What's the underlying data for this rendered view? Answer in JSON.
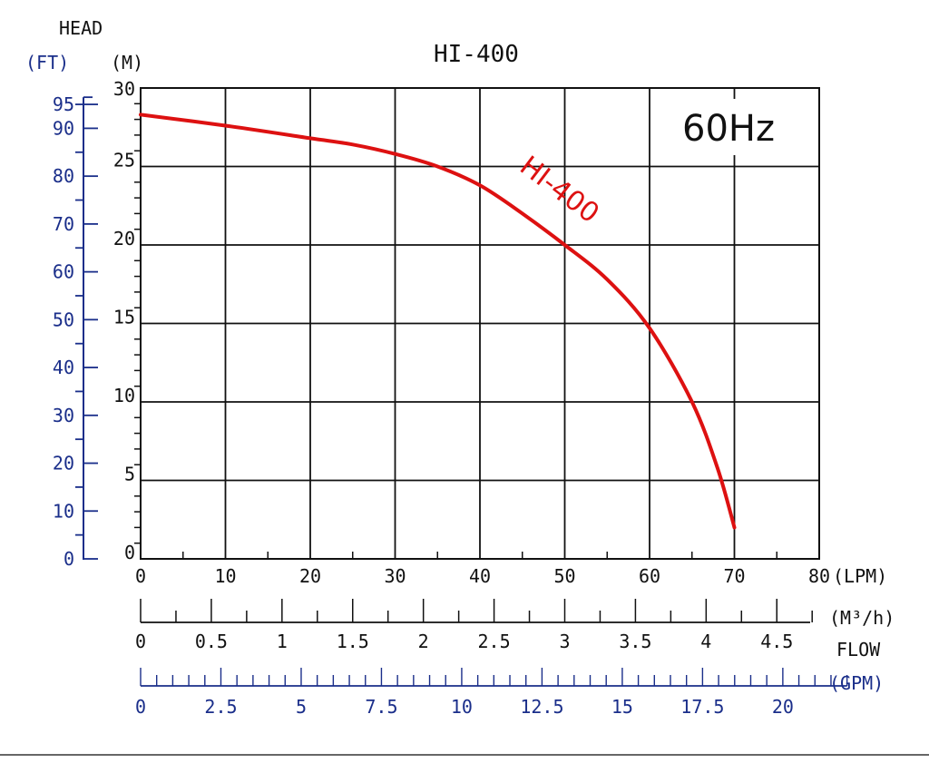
{
  "chart_data": {
    "type": "line",
    "title": "HI-400",
    "frequency_label": "60Hz",
    "curve_label": "HI-400",
    "y_axis_title": "HEAD",
    "y_left_unit": "(FT)",
    "y_left_ticks": [
      "0",
      "10",
      "20",
      "30",
      "40",
      "50",
      "60",
      "70",
      "80",
      "90",
      "95"
    ],
    "y_right_unit": "(M)",
    "y_right_ticks": [
      "0",
      "5",
      "10",
      "15",
      "20",
      "25",
      "30"
    ],
    "ylim": [
      0,
      30
    ],
    "xlim": [
      0,
      80
    ],
    "x_lpm_unit": "(LPM)",
    "x_lpm_ticks": [
      "0",
      "10",
      "20",
      "30",
      "40",
      "50",
      "60",
      "70",
      "80"
    ],
    "x_m3h_unit": "(M³/h)",
    "x_m3h_ticks": [
      "0",
      "0.5",
      "1",
      "1.5",
      "2",
      "2.5",
      "3",
      "3.5",
      "4",
      "4.5"
    ],
    "flow_label": "FLOW",
    "x_gpm_unit": "(GPM)",
    "x_gpm_ticks": [
      "0",
      "2.5",
      "5",
      "7.5",
      "10",
      "12.5",
      "15",
      "17.5",
      "20"
    ],
    "grid": true,
    "colors": {
      "curve": "#dd1111",
      "ft_axis": "#1a2e8a",
      "axis": "#111111"
    },
    "series": [
      {
        "name": "HI-400",
        "x": [
          0,
          10,
          20,
          25,
          30,
          35,
          40,
          45,
          50,
          55,
          60,
          65,
          68,
          70
        ],
        "y": [
          28.3,
          27.6,
          26.8,
          26.4,
          25.8,
          25.0,
          23.8,
          22.0,
          20.0,
          17.8,
          14.7,
          10.0,
          5.8,
          2.0
        ]
      }
    ]
  }
}
